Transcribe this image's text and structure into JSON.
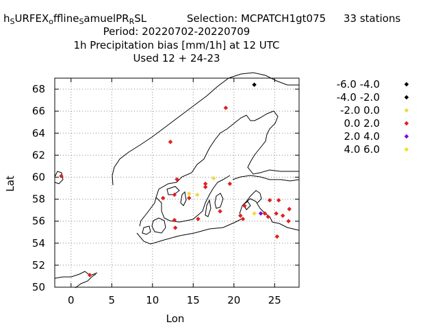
{
  "title": {
    "line1": {
      "parts": [
        {
          "text": "h",
          "sub": false
        },
        {
          "text": "S",
          "sub": true
        },
        {
          "text": "URFEX",
          "sub": false
        },
        {
          "text": "o",
          "sub": true
        },
        {
          "text": "ffline",
          "sub": false
        },
        {
          "text": "S",
          "sub": true
        },
        {
          "text": "amuelPR",
          "sub": false
        },
        {
          "text": "R",
          "sub": true
        },
        {
          "text": "SL",
          "sub": false
        }
      ],
      "selection": "Selection: MCPATCH1gt075",
      "stations": "33 stations"
    },
    "line2": "Period: 20220702-20220709",
    "line3": "1h Precipitation bias [mm/1h] at  12 UTC",
    "line4": "Used  12 + 24-23"
  },
  "chart_data": {
    "type": "scatter",
    "xlabel": "Lon",
    "ylabel": "Lat",
    "xlim": [
      -2,
      28
    ],
    "ylim": [
      50,
      69
    ],
    "xticks": [
      0,
      5,
      10,
      15,
      20,
      25
    ],
    "yticks": [
      50,
      52,
      54,
      56,
      58,
      60,
      62,
      64,
      66,
      68
    ],
    "grid": true,
    "legend_position": "right",
    "categories": [
      {
        "label": "-6.0 -4.0",
        "color": "#000000"
      },
      {
        "label": "-4.0 -2.0",
        "color": "#000000"
      },
      {
        "label": "-2.0 0.0",
        "color": "#f0d840"
      },
      {
        "label": "0.0 2.0",
        "color": "#e02020"
      },
      {
        "label": "2.0 4.0",
        "color": "#8000e0"
      },
      {
        "label": "4.0 6.0",
        "color": "#f0e020"
      }
    ],
    "points": [
      {
        "x": 22.5,
        "y": 68.4,
        "c": 1
      },
      {
        "x": 19.0,
        "y": 66.3,
        "c": 3
      },
      {
        "x": 12.2,
        "y": 63.2,
        "c": 3
      },
      {
        "x": -1.2,
        "y": 60.1,
        "c": 3
      },
      {
        "x": 17.5,
        "y": 59.9,
        "c": 2
      },
      {
        "x": 13.0,
        "y": 59.8,
        "c": 3
      },
      {
        "x": 19.5,
        "y": 59.4,
        "c": 3
      },
      {
        "x": 16.5,
        "y": 59.4,
        "c": 3
      },
      {
        "x": 16.5,
        "y": 59.1,
        "c": 3
      },
      {
        "x": 14.5,
        "y": 58.5,
        "c": 2
      },
      {
        "x": 15.5,
        "y": 58.4,
        "c": 2
      },
      {
        "x": 12.7,
        "y": 58.4,
        "c": 3
      },
      {
        "x": 11.3,
        "y": 58.1,
        "c": 3
      },
      {
        "x": 14.5,
        "y": 58.1,
        "c": 3
      },
      {
        "x": 24.4,
        "y": 57.9,
        "c": 3
      },
      {
        "x": 25.5,
        "y": 57.9,
        "c": 3
      },
      {
        "x": 21.3,
        "y": 57.4,
        "c": 3
      },
      {
        "x": 26.8,
        "y": 57.1,
        "c": 3
      },
      {
        "x": 18.3,
        "y": 56.9,
        "c": 3
      },
      {
        "x": 22.5,
        "y": 56.7,
        "c": 2
      },
      {
        "x": 23.3,
        "y": 56.7,
        "c": 4
      },
      {
        "x": 23.8,
        "y": 56.7,
        "c": 3
      },
      {
        "x": 25.2,
        "y": 56.7,
        "c": 3
      },
      {
        "x": 26.0,
        "y": 56.5,
        "c": 3
      },
      {
        "x": 20.8,
        "y": 56.5,
        "c": 3
      },
      {
        "x": 24.2,
        "y": 56.4,
        "c": 3
      },
      {
        "x": 21.1,
        "y": 56.2,
        "c": 3
      },
      {
        "x": 15.6,
        "y": 56.2,
        "c": 3
      },
      {
        "x": 12.7,
        "y": 56.1,
        "c": 3
      },
      {
        "x": 26.7,
        "y": 56.0,
        "c": 3
      },
      {
        "x": 12.8,
        "y": 55.4,
        "c": 3
      },
      {
        "x": 25.3,
        "y": 54.6,
        "c": 3
      },
      {
        "x": 2.3,
        "y": 51.1,
        "c": 3
      }
    ]
  }
}
